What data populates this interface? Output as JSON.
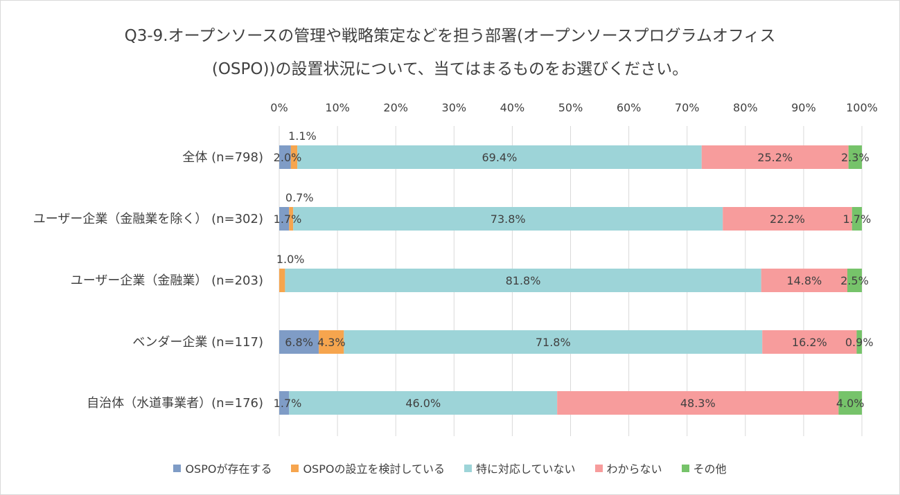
{
  "title": {
    "line1": "Q3-9.オープンソースの管理や戦略策定などを担う部署(オープンソースプログラムオフィス",
    "line2": "(OSPO))の設置状況について、当てはまるものをお選びください。"
  },
  "chart_data": {
    "type": "bar",
    "orientation": "horizontal",
    "stacked": "percent",
    "x_axis": {
      "position": "top",
      "range": [
        0,
        100
      ],
      "ticks": [
        "0%",
        "10%",
        "20%",
        "30%",
        "40%",
        "50%",
        "60%",
        "70%",
        "80%",
        "90%",
        "100%"
      ]
    },
    "grid": true,
    "legend_position": "bottom",
    "categories": [
      "全体 (n=798)",
      "ユーザー企業（金融業を除く） (n=302)",
      "ユーザー企業（金融業） (n=203)",
      "ベンダー企業 (n=117)",
      "自治体（水道事業者）(n=176)"
    ],
    "series": [
      {
        "name": "OSPOが存在する",
        "color": "#7f9cc6",
        "values": [
          2.0,
          1.7,
          0.0,
          6.8,
          1.7
        ],
        "labels": [
          "2.0%",
          "1.7%",
          "",
          "6.8%",
          "1.7%"
        ]
      },
      {
        "name": "OSPOの設立を検討している",
        "color": "#f6a54e",
        "values": [
          1.1,
          0.7,
          1.0,
          4.3,
          0.0
        ],
        "labels": [
          "1.1%",
          "0.7%",
          "1.0%",
          "4.3%",
          ""
        ]
      },
      {
        "name": "特に対応していない",
        "color": "#9dd4d8",
        "values": [
          69.4,
          73.8,
          81.8,
          71.8,
          46.0
        ],
        "labels": [
          "69.4%",
          "73.8%",
          "81.8%",
          "71.8%",
          "46.0%"
        ]
      },
      {
        "name": "わからない",
        "color": "#f79c9c",
        "values": [
          25.2,
          22.2,
          14.8,
          16.2,
          48.3
        ],
        "labels": [
          "25.2%",
          "22.2%",
          "14.8%",
          "16.2%",
          "48.3%"
        ]
      },
      {
        "name": "その他",
        "color": "#76c36a",
        "values": [
          2.3,
          1.7,
          2.5,
          0.9,
          4.0
        ],
        "labels": [
          "2.3%",
          "1.7%",
          "2.5%",
          "0.9%",
          "4.0%"
        ]
      }
    ]
  }
}
